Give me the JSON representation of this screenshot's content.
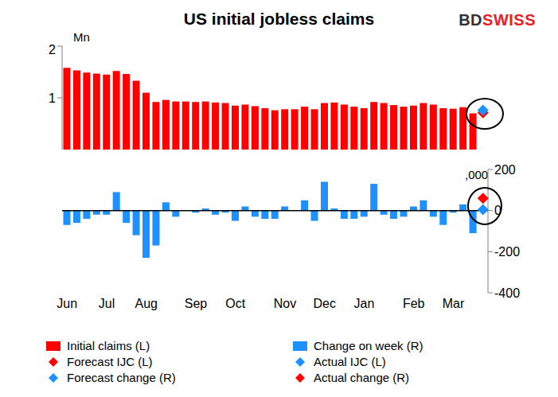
{
  "logo": "BDSWISS",
  "chart_data": [
    {
      "type": "bar",
      "title": "US initial jobless claims",
      "y_label": "Mn",
      "tick_labels": "y",
      "categories": [
        "Jun",
        null,
        null,
        null,
        "Jul",
        null,
        null,
        null,
        "Aug",
        null,
        null,
        null,
        null,
        "Sep",
        null,
        null,
        null,
        "Oct",
        null,
        null,
        null,
        null,
        "Nov",
        null,
        null,
        null,
        "Dec",
        null,
        null,
        null,
        "Jan",
        null,
        null,
        null,
        null,
        "Feb",
        null,
        null,
        null,
        "Mar",
        null,
        null,
        null
      ],
      "ylim": [
        0,
        2
      ],
      "yticks": [
        0,
        1,
        2
      ],
      "series": [
        {
          "name": "Initial claims (L)",
          "color": "#ff0000",
          "values": [
            1.58,
            1.53,
            1.49,
            1.47,
            1.45,
            1.52,
            1.46,
            1.33,
            1.1,
            0.92,
            0.96,
            0.93,
            0.93,
            0.92,
            0.93,
            0.91,
            0.9,
            0.85,
            0.87,
            0.84,
            0.8,
            0.76,
            0.78,
            0.78,
            0.83,
            0.78,
            0.9,
            0.91,
            0.87,
            0.83,
            0.8,
            0.92,
            0.9,
            0.86,
            0.83,
            0.85,
            0.9,
            0.87,
            0.8,
            0.79,
            0.82,
            0.7,
            null
          ]
        },
        {
          "name": "Forecast IJC (L)",
          "type": "scatter",
          "marker": "diamond",
          "color": "#ff0000",
          "values": [
            null,
            null,
            null,
            null,
            null,
            null,
            null,
            null,
            null,
            null,
            null,
            null,
            null,
            null,
            null,
            null,
            null,
            null,
            null,
            null,
            null,
            null,
            null,
            null,
            null,
            null,
            null,
            null,
            null,
            null,
            null,
            null,
            null,
            null,
            null,
            null,
            null,
            null,
            null,
            null,
            null,
            null,
            0.71
          ]
        },
        {
          "name": "Actual IJC (L)",
          "type": "scatter",
          "marker": "diamond",
          "color": "#1e90ff",
          "values": [
            null,
            null,
            null,
            null,
            null,
            null,
            null,
            null,
            null,
            null,
            null,
            null,
            null,
            null,
            null,
            null,
            null,
            null,
            null,
            null,
            null,
            null,
            null,
            null,
            null,
            null,
            null,
            null,
            null,
            null,
            null,
            null,
            null,
            null,
            null,
            null,
            null,
            null,
            null,
            null,
            null,
            null,
            0.76
          ]
        }
      ]
    },
    {
      "type": "bar",
      "y_label": ",000",
      "categories": [
        "Jun",
        null,
        null,
        null,
        "Jul",
        null,
        null,
        null,
        "Aug",
        null,
        null,
        null,
        null,
        "Sep",
        null,
        null,
        null,
        "Oct",
        null,
        null,
        null,
        null,
        "Nov",
        null,
        null,
        null,
        "Dec",
        null,
        null,
        null,
        "Jan",
        null,
        null,
        null,
        null,
        "Feb",
        null,
        null,
        null,
        "Mar",
        null,
        null,
        null
      ],
      "y2lim": [
        -400,
        200
      ],
      "y2ticks": [
        -400,
        -200,
        0,
        200
      ],
      "series": [
        {
          "name": "Change on week (R)",
          "axis": "y2",
          "color": "#1e90ff",
          "values": [
            -70,
            -60,
            -40,
            -20,
            -20,
            90,
            -60,
            -120,
            -230,
            -170,
            40,
            -30,
            0,
            -10,
            10,
            -20,
            -10,
            -50,
            20,
            -30,
            -40,
            -40,
            20,
            0,
            50,
            -50,
            140,
            10,
            -40,
            -40,
            -30,
            130,
            -20,
            -40,
            -30,
            20,
            50,
            -30,
            -70,
            -10,
            30,
            -110,
            null
          ]
        },
        {
          "name": "Forecast change (R)",
          "axis": "y2",
          "type": "scatter",
          "marker": "diamond",
          "color": "#1e90ff",
          "values": [
            null,
            null,
            null,
            null,
            null,
            null,
            null,
            null,
            null,
            null,
            null,
            null,
            null,
            null,
            null,
            null,
            null,
            null,
            null,
            null,
            null,
            null,
            null,
            null,
            null,
            null,
            null,
            null,
            null,
            null,
            null,
            null,
            null,
            null,
            null,
            null,
            null,
            null,
            null,
            null,
            null,
            null,
            5
          ]
        },
        {
          "name": "Actual change (R)",
          "axis": "y2",
          "type": "scatter",
          "marker": "diamond",
          "color": "#ff0000",
          "values": [
            null,
            null,
            null,
            null,
            null,
            null,
            null,
            null,
            null,
            null,
            null,
            null,
            null,
            null,
            null,
            null,
            null,
            null,
            null,
            null,
            null,
            null,
            null,
            null,
            null,
            null,
            null,
            null,
            null,
            null,
            null,
            null,
            null,
            null,
            null,
            null,
            null,
            null,
            null,
            null,
            null,
            null,
            60
          ]
        }
      ]
    }
  ]
}
